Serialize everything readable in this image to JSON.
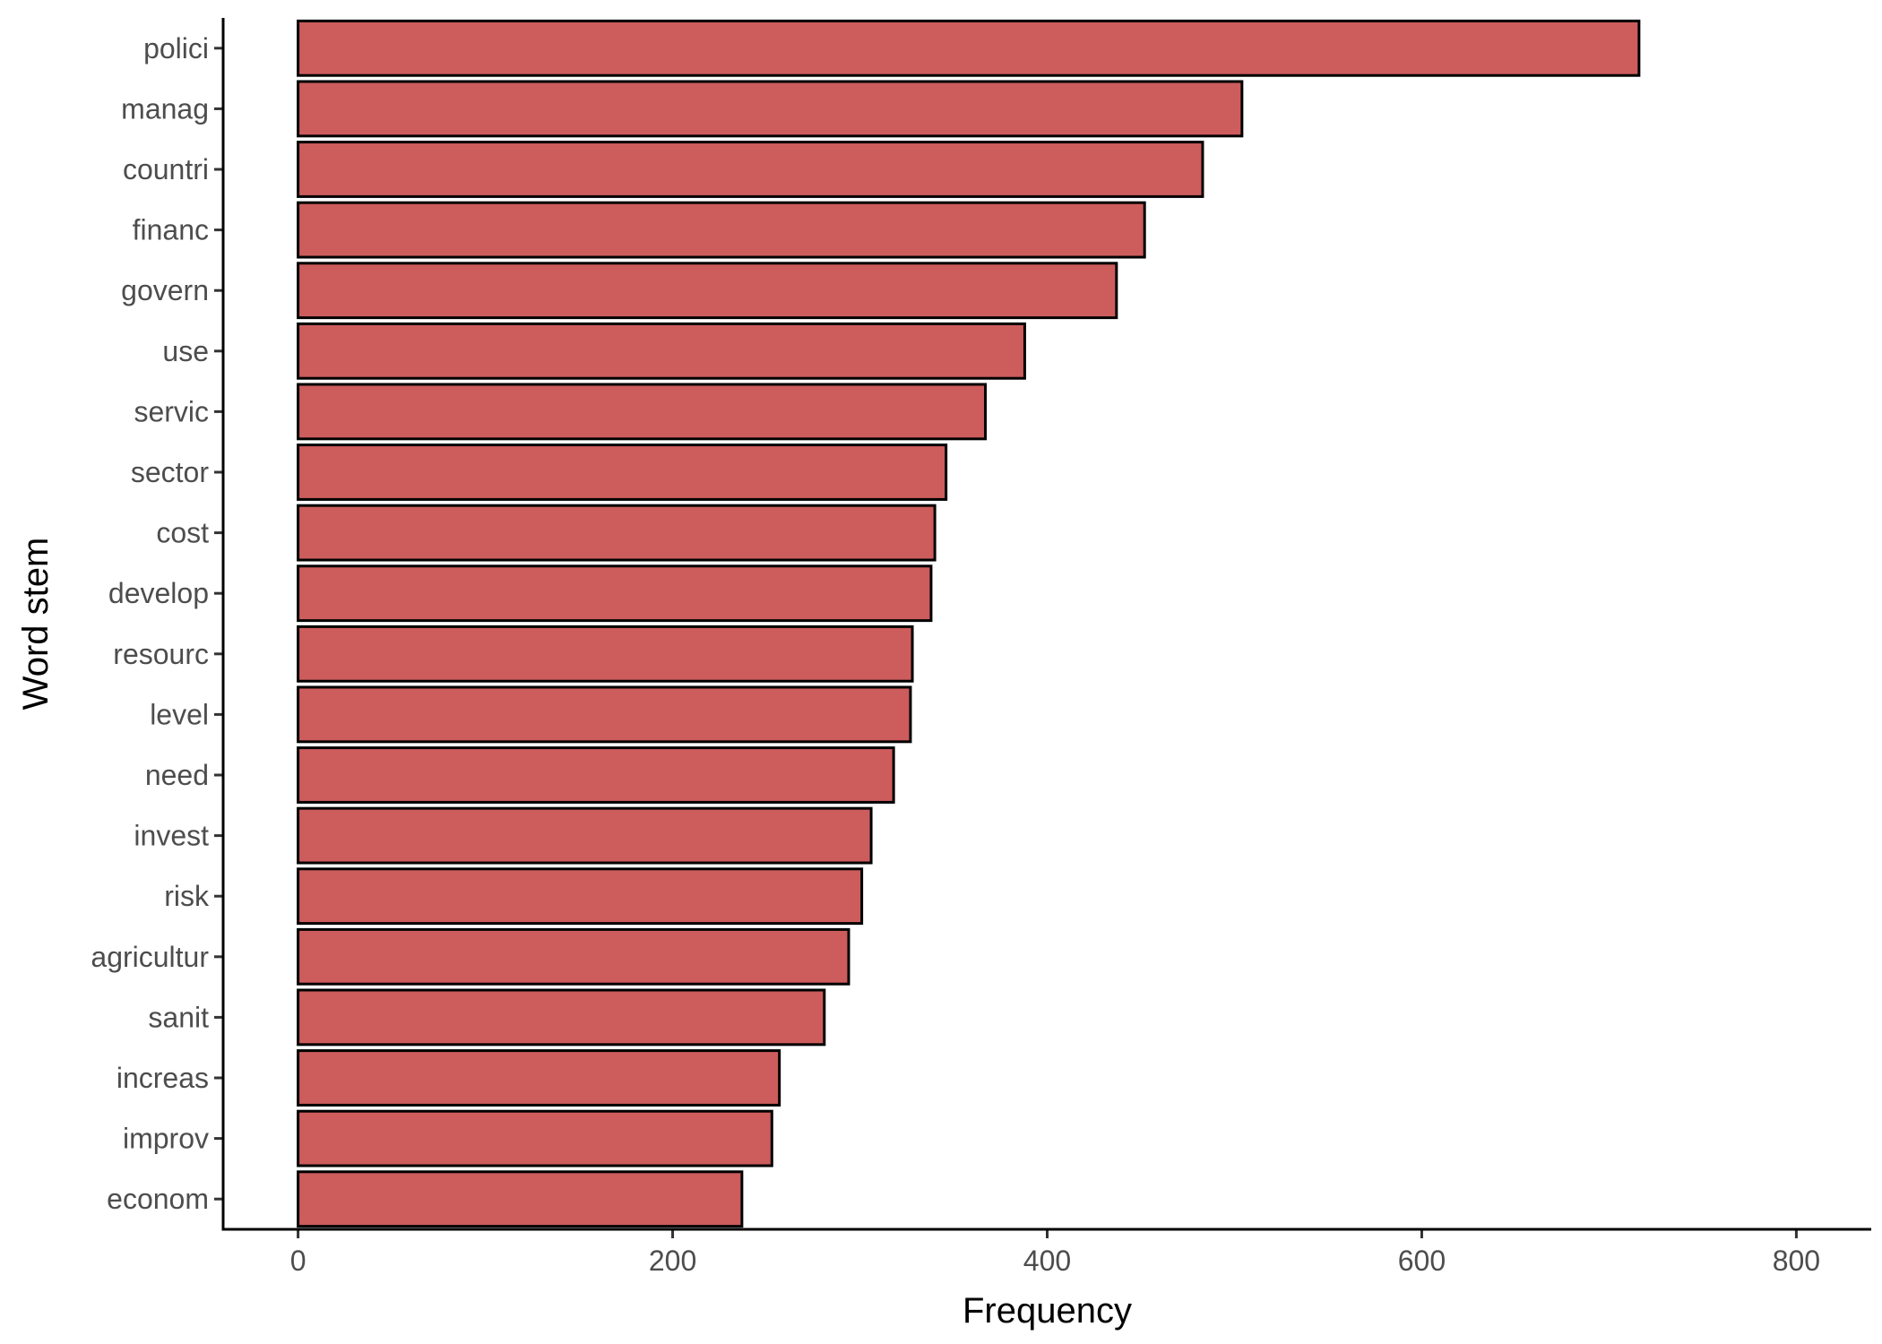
{
  "chart_data": {
    "type": "bar",
    "orientation": "horizontal",
    "title": "",
    "xlabel": "Frequency",
    "ylabel": "Word stem",
    "categories": [
      "polici",
      "manag",
      "countri",
      "financ",
      "govern",
      "use",
      "servic",
      "sector",
      "cost",
      "develop",
      "resourc",
      "level",
      "need",
      "invest",
      "risk",
      "agricultur",
      "sanit",
      "increas",
      "improv",
      "econom"
    ],
    "values": [
      716,
      504,
      483,
      452,
      437,
      388,
      367,
      346,
      340,
      338,
      328,
      327,
      318,
      306,
      301,
      294,
      281,
      257,
      253,
      237
    ],
    "xlim": [
      -40,
      840
    ],
    "xticks": [
      0,
      200,
      400,
      600,
      800
    ],
    "grid": false,
    "legend": "none",
    "colors": {
      "bar_fill": "#CD5C5C",
      "bar_stroke": "#000000",
      "axis": "#000000",
      "tick_text": "#4d4d4d"
    }
  }
}
